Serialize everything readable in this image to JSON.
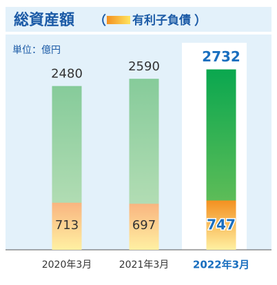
{
  "chart_data": {
    "type": "bar",
    "title": "総資産額",
    "title_brackets": [
      "（",
      "）"
    ],
    "unit_label": "単位：億円",
    "categories": [
      "2020年3月",
      "2021年3月",
      "2022年3月"
    ],
    "series": [
      {
        "values": [
          2480,
          2590,
          2732
        ],
        "colors": [
          "#86cb9a",
          "#86cb9a",
          "#0aa74f"
        ]
      },
      {
        "name": "有利子負債",
        "values": [
          713,
          697,
          747
        ],
        "colors": [
          "#f9b580",
          "#f9b580",
          "#f39020"
        ]
      }
    ],
    "ylim": [
      0,
      2790
    ]
  }
}
